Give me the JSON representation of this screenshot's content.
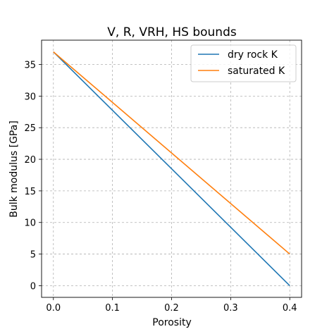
{
  "chart_data": {
    "type": "line",
    "title": "V, R, VRH, HS bounds",
    "xlabel": "Porosity",
    "ylabel": "Bulk modulus [GPa]",
    "xlim": [
      -0.02,
      0.42
    ],
    "ylim": [
      -1.85,
      38.85
    ],
    "xticks": [
      0.0,
      0.1,
      0.2,
      0.3,
      0.4
    ],
    "xtick_labels": [
      "0.0",
      "0.1",
      "0.2",
      "0.3",
      "0.4"
    ],
    "yticks": [
      0,
      5,
      10,
      15,
      20,
      25,
      30,
      35
    ],
    "ytick_labels": [
      "0",
      "5",
      "10",
      "15",
      "20",
      "25",
      "30",
      "35"
    ],
    "grid": true,
    "legend_position": "top-right",
    "series": [
      {
        "name": "dry rock K",
        "color": "#1f77b4",
        "x": [
          0.0,
          0.4
        ],
        "y": [
          37.0,
          0.0
        ]
      },
      {
        "name": "saturated K",
        "color": "#ff7f0e",
        "x": [
          0.0,
          0.4
        ],
        "y": [
          37.0,
          5.0
        ]
      }
    ]
  }
}
